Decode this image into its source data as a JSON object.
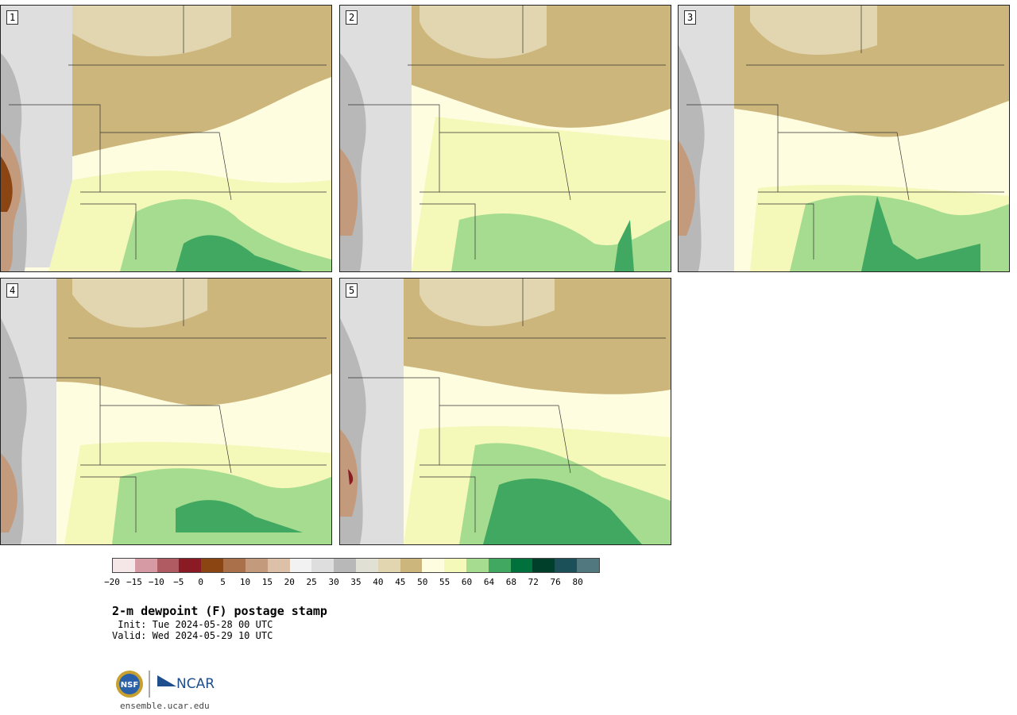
{
  "panels": [
    {
      "label": "1"
    },
    {
      "label": "2"
    },
    {
      "label": "3"
    },
    {
      "label": "4"
    },
    {
      "label": "5"
    }
  ],
  "colorbar": {
    "ticks": [
      "−20",
      "−15",
      "−10",
      "−5",
      "0",
      "5",
      "10",
      "15",
      "20",
      "25",
      "30",
      "35",
      "40",
      "45",
      "50",
      "55",
      "60",
      "64",
      "68",
      "72",
      "76",
      "80"
    ],
    "colors": [
      "#f5e6e8",
      "#d59aa3",
      "#b05a62",
      "#8a1a24",
      "#8b4513",
      "#a9704a",
      "#c49a7c",
      "#dcc0a8",
      "#f2f2f2",
      "#dedede",
      "#b8b8b8",
      "#e0e0d4",
      "#e2d6b0",
      "#ccb67c",
      "#fffde0",
      "#f4f8b8",
      "#a6dc90",
      "#40a860",
      "#00703c",
      "#00402a",
      "#1c5058",
      "#50787e"
    ]
  },
  "title": "2-m dewpoint (F) postage stamp",
  "init": " Init: Tue 2024-05-28 00 UTC",
  "valid": "Valid: Wed 2024-05-29 10 UTC",
  "logo": {
    "left_text": "NSF",
    "right_text": "NCAR"
  },
  "site": "ensemble.ucar.edu"
}
